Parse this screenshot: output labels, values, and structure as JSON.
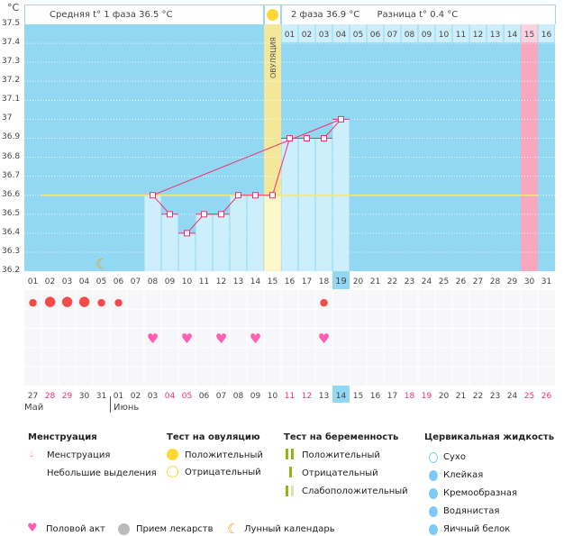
{
  "unit_label": "°C",
  "header": {
    "phase1": "Средняя t° 1 фаза 36.5 °C",
    "phase2": "2 фаза 36.9 °C",
    "difference": "Разница t° 0.4 °C",
    "ovulation_label": "ОВУЛЯЦИЯ"
  },
  "colors": {
    "plot_bg": "#93d8f2",
    "bar": "#cdeefb",
    "ovulation": "#f5e79a",
    "ovulation_low": "#fdf7cc",
    "period_expected": "#f7a8c0",
    "coverline": "#f7e67a",
    "line": "#f0306a",
    "blood": "#f44a4a",
    "heart": "#ff5fb5",
    "weekend": "#f0306a"
  },
  "y_ticks": [
    "37.5",
    "37.4",
    "37.3",
    "37.2",
    "37.1",
    "37",
    "36.9",
    "36.8",
    "36.7",
    "36.6",
    "36.5",
    "36.4",
    "36.3",
    "36.2"
  ],
  "cycle_days": [
    "01",
    "02",
    "03",
    "04",
    "05",
    "06",
    "07",
    "08",
    "09",
    "10",
    "11",
    "12",
    "13",
    "14",
    "15",
    "16",
    "17",
    "18",
    "19",
    "20",
    "21",
    "22",
    "23",
    "24",
    "25",
    "26",
    "27",
    "28",
    "29",
    "30",
    "31"
  ],
  "next_cycle_days": [
    "01",
    "02",
    "03",
    "04",
    "05",
    "06",
    "07",
    "08",
    "09",
    "10",
    "11",
    "12",
    "13",
    "14",
    "15",
    "16"
  ],
  "next_cycle_highlight": "15",
  "current_day": "19",
  "temperatures": {
    "08": 36.6,
    "09": 36.5,
    "10": 36.4,
    "11": 36.5,
    "12": 36.5,
    "13": 36.6,
    "14": 36.6,
    "15": 36.6,
    "16": 36.9,
    "17": 36.9,
    "18": 36.9,
    "19": 37.0
  },
  "coverline": 36.6,
  "ovulation_day": "15",
  "moon_day": "05",
  "menstruation": {
    "01": "small",
    "02": "large",
    "03": "large",
    "04": "large",
    "05": "small",
    "06": "small",
    "18": "small"
  },
  "intercourse_days": [
    "08",
    "10",
    "12",
    "14",
    "18"
  ],
  "calendar_dates": [
    "27",
    "28",
    "29",
    "30",
    "31",
    "01",
    "02",
    "03",
    "04",
    "05",
    "06",
    "07",
    "08",
    "09",
    "10",
    "11",
    "12",
    "13",
    "14",
    "15",
    "16",
    "17",
    "18",
    "19",
    "20",
    "21",
    "22",
    "23",
    "24",
    "25",
    "26"
  ],
  "weekend_dates_idx": [
    1,
    2,
    8,
    9,
    15,
    16,
    22,
    23,
    29,
    30
  ],
  "months": [
    "Май",
    "Июнь"
  ],
  "legend": {
    "menstruation": {
      "title": "Менструация",
      "items": [
        "Менструация",
        "Небольшие выделения"
      ]
    },
    "ovulation_test": {
      "title": "Тест на овуляцию",
      "items": [
        "Положительный",
        "Отрицательный"
      ]
    },
    "pregnancy_test": {
      "title": "Тест на беременность",
      "items": [
        "Положительный",
        "Отрицательный",
        "Слабоположительный"
      ]
    },
    "cervical": {
      "title": "Цервикальная жидкость",
      "items": [
        "Сухо",
        "Клейкая",
        "Кремообразная",
        "Водянистая",
        "Яичный белок"
      ]
    },
    "other": [
      "Половой акт",
      "Прием лекарств",
      "Лунный календарь"
    ]
  }
}
